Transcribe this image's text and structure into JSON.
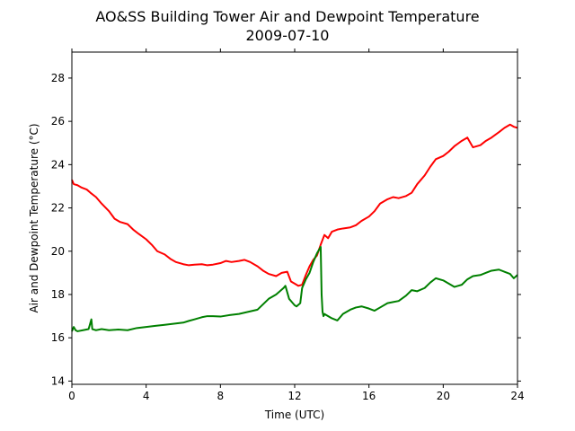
{
  "chart_data": {
    "type": "line",
    "title": "AO&SS Building Tower Air and Dewpoint Temperature",
    "subtitle": "2009-07-10",
    "xlabel": "Time (UTC)",
    "ylabel": "Air and Dewpoint Temperature (°C)",
    "xlim": [
      0,
      24
    ],
    "ylim": [
      13.85,
      29.2
    ],
    "xticks": [
      0,
      4,
      8,
      12,
      16,
      20,
      24
    ],
    "yticks": [
      14,
      16,
      18,
      20,
      22,
      24,
      26,
      28
    ],
    "grid": false,
    "legend": "none",
    "series": [
      {
        "color": "#ff0000",
        "x": [
          0,
          0.1,
          0.3,
          0.5,
          0.8,
          1.0,
          1.3,
          1.6,
          2.0,
          2.3,
          2.6,
          3.0,
          3.3,
          3.6,
          4.0,
          4.3,
          4.6,
          5.0,
          5.3,
          5.6,
          6.0,
          6.3,
          6.6,
          7.0,
          7.3,
          7.6,
          8.0,
          8.3,
          8.6,
          9.0,
          9.3,
          9.6,
          10.0,
          10.3,
          10.6,
          11.0,
          11.3,
          11.6,
          11.8,
          12.0,
          12.2,
          12.4,
          12.6,
          12.8,
          13.0,
          13.2,
          13.4,
          13.6,
          13.8,
          14.0,
          14.3,
          14.6,
          15.0,
          15.3,
          15.6,
          16.0,
          16.3,
          16.6,
          17.0,
          17.3,
          17.6,
          18.0,
          18.3,
          18.6,
          19.0,
          19.3,
          19.6,
          20.0,
          20.3,
          20.6,
          21.0,
          21.3,
          21.6,
          22.0,
          22.3,
          22.6,
          23.0,
          23.3,
          23.6,
          23.8,
          24.0
        ],
        "values": [
          23.3,
          23.1,
          23.05,
          22.95,
          22.85,
          22.7,
          22.5,
          22.2,
          21.85,
          21.5,
          21.35,
          21.25,
          21.0,
          20.8,
          20.55,
          20.3,
          20.0,
          19.85,
          19.65,
          19.5,
          19.4,
          19.35,
          19.38,
          19.4,
          19.35,
          19.38,
          19.45,
          19.55,
          19.5,
          19.55,
          19.6,
          19.5,
          19.3,
          19.1,
          18.95,
          18.85,
          19.0,
          19.05,
          18.6,
          18.5,
          18.4,
          18.45,
          18.9,
          19.3,
          19.6,
          19.8,
          20.3,
          20.75,
          20.6,
          20.9,
          21.0,
          21.05,
          21.1,
          21.2,
          21.4,
          21.6,
          21.85,
          22.2,
          22.4,
          22.5,
          22.45,
          22.55,
          22.7,
          23.1,
          23.5,
          23.9,
          24.25,
          24.4,
          24.6,
          24.85,
          25.1,
          25.25,
          24.8,
          24.9,
          25.1,
          25.25,
          25.5,
          25.7,
          25.85,
          25.75,
          25.7
        ]
      },
      {
        "color": "#008000",
        "x": [
          0,
          0.1,
          0.2,
          0.3,
          0.6,
          0.9,
          1.05,
          1.1,
          1.3,
          1.6,
          2.0,
          2.5,
          3.0,
          3.5,
          4.0,
          4.5,
          5.0,
          5.5,
          6.0,
          6.3,
          6.6,
          7.0,
          7.3,
          7.6,
          8.0,
          8.5,
          9.0,
          9.5,
          10.0,
          10.3,
          10.6,
          11.0,
          11.2,
          11.4,
          11.5,
          11.7,
          11.9,
          12.0,
          12.1,
          12.3,
          12.4,
          12.6,
          12.8,
          13.0,
          13.2,
          13.4,
          13.45,
          13.5,
          13.55,
          13.6,
          13.7,
          14.0,
          14.3,
          14.6,
          15.0,
          15.3,
          15.6,
          16.0,
          16.3,
          16.6,
          17.0,
          17.3,
          17.6,
          18.0,
          18.3,
          18.6,
          19.0,
          19.3,
          19.6,
          20.0,
          20.3,
          20.6,
          21.0,
          21.3,
          21.6,
          22.0,
          22.3,
          22.6,
          23.0,
          23.3,
          23.6,
          23.8,
          24.0
        ],
        "values": [
          16.3,
          16.5,
          16.35,
          16.3,
          16.35,
          16.4,
          16.85,
          16.4,
          16.35,
          16.4,
          16.35,
          16.38,
          16.35,
          16.45,
          16.5,
          16.55,
          16.6,
          16.65,
          16.7,
          16.78,
          16.85,
          16.95,
          17.0,
          17.0,
          16.98,
          17.05,
          17.1,
          17.2,
          17.3,
          17.55,
          17.8,
          18.0,
          18.15,
          18.3,
          18.4,
          17.8,
          17.6,
          17.5,
          17.45,
          17.6,
          18.3,
          18.7,
          19.0,
          19.5,
          19.9,
          20.2,
          18.0,
          17.2,
          17.0,
          17.1,
          17.05,
          16.9,
          16.8,
          17.1,
          17.3,
          17.4,
          17.45,
          17.35,
          17.25,
          17.4,
          17.6,
          17.65,
          17.7,
          17.95,
          18.2,
          18.15,
          18.3,
          18.55,
          18.75,
          18.65,
          18.5,
          18.35,
          18.45,
          18.7,
          18.85,
          18.9,
          19.0,
          19.1,
          19.15,
          19.05,
          18.95,
          18.75,
          18.9
        ]
      }
    ]
  }
}
